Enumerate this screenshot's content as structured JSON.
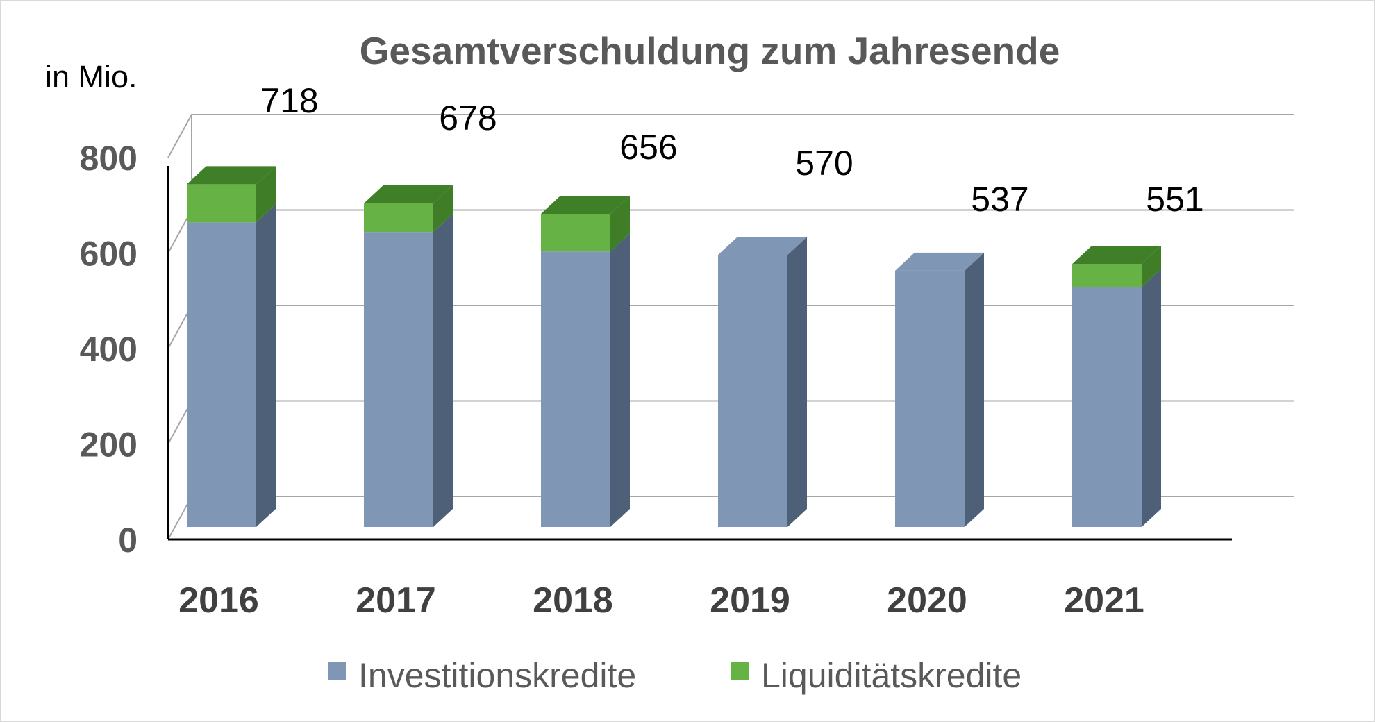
{
  "chart_data": {
    "type": "bar",
    "stacked": true,
    "three_d": true,
    "title": "Gesamtverschuldung zum Jahresende",
    "unit_label": "in Mio.",
    "categories": [
      "2016",
      "2017",
      "2018",
      "2019",
      "2020",
      "2021"
    ],
    "series": [
      {
        "name": "Investitionskredite",
        "values": [
          638,
          618,
          577,
          570,
          537,
          503
        ],
        "color": "#7f96b5"
      },
      {
        "name": "Liquiditätskredite",
        "values": [
          80,
          60,
          79,
          0,
          0,
          48
        ],
        "color": "#66b245"
      }
    ],
    "totals": [
      "718",
      "678",
      "656",
      "570",
      "537",
      "551"
    ],
    "y_ticks": [
      "0",
      "200",
      "400",
      "600",
      "800"
    ],
    "ylim": [
      0,
      800
    ],
    "grid": true,
    "legend_position": "bottom"
  }
}
